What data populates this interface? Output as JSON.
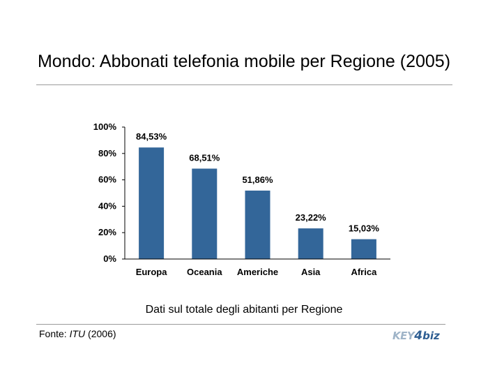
{
  "title": "Mondo: Abbonati telefonia mobile per Regione (2005)",
  "subtitle": "Dati sul totale degli abitanti per Regione",
  "source": {
    "prefix": "Fonte: ",
    "name": "ITU",
    "year": " (2006)"
  },
  "logo": {
    "part1": "KEY",
    "part2": "4",
    "part3": "biz"
  },
  "colors": {
    "bar": "#336699",
    "axis": "#000000",
    "rule": "#9a9a9a"
  },
  "chart_data": {
    "type": "bar",
    "title": "",
    "xlabel": "",
    "ylabel": "",
    "categories": [
      "Europa",
      "Oceania",
      "Americhe",
      "Asia",
      "Africa"
    ],
    "values": [
      84.53,
      68.51,
      51.86,
      23.22,
      15.03
    ],
    "data_labels": [
      "84,53%",
      "68,51%",
      "51,86%",
      "23,22%",
      "15,03%"
    ],
    "y_ticks": [
      {
        "value": 0,
        "label": "0%"
      },
      {
        "value": 20,
        "label": "20%"
      },
      {
        "value": 40,
        "label": "40%"
      },
      {
        "value": 60,
        "label": "60%"
      },
      {
        "value": 80,
        "label": "80%"
      },
      {
        "value": 100,
        "label": "100%"
      }
    ],
    "ylim": [
      0,
      100
    ],
    "grid": false,
    "legend": "none"
  }
}
